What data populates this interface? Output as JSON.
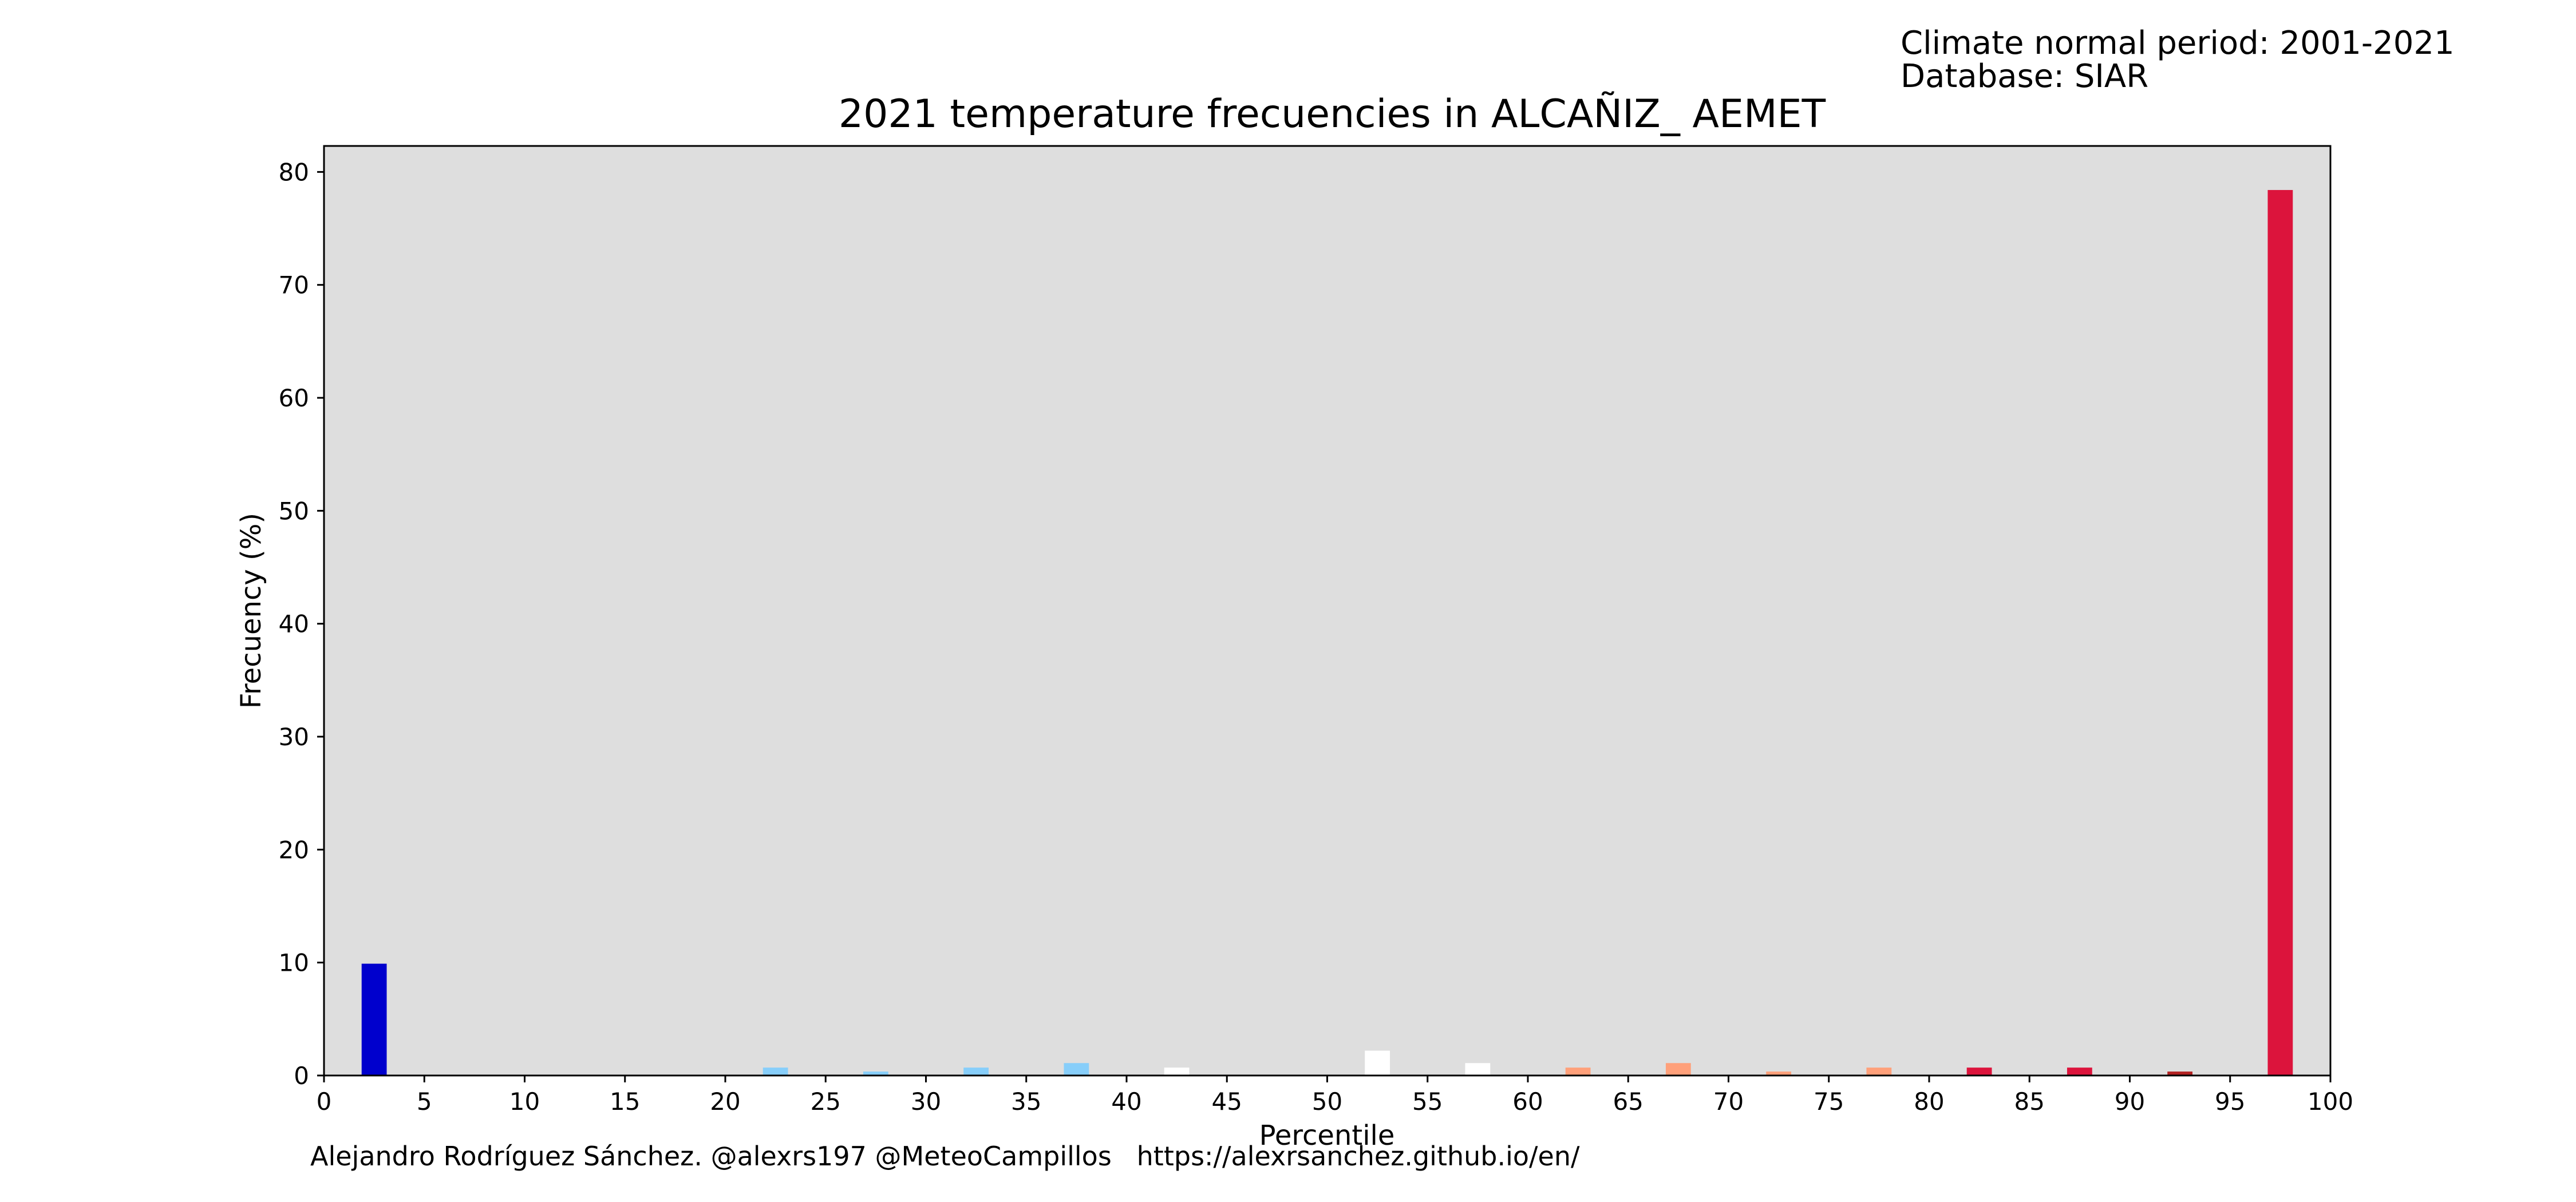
{
  "header_info": {
    "climate_normal": "Climate normal period: 2001-2021",
    "database": "Database: SIAR"
  },
  "footer": {
    "credits": "Alejandro Rodríguez Sánchez. @alexrs197 @MeteoCampillos   https://alexrsanchez.github.io/en/"
  },
  "colors": {
    "plot_background": "#dedede",
    "axes_frame": "#000000"
  },
  "chart_data": {
    "type": "bar",
    "title": "2021 temperature frecuencies in ALCAÑIZ_ AEMET",
    "xlabel": "Percentile",
    "ylabel": "Frecuency (%)",
    "xlim": [
      0,
      100
    ],
    "ylim": [
      0,
      82.3
    ],
    "x_ticks": [
      0,
      5,
      10,
      15,
      20,
      25,
      30,
      35,
      40,
      45,
      50,
      55,
      60,
      65,
      70,
      75,
      80,
      85,
      90,
      95,
      100
    ],
    "y_ticks": [
      0,
      10,
      20,
      30,
      40,
      50,
      60,
      70,
      80
    ],
    "bar_width": 1.25,
    "grid": false,
    "bars": [
      {
        "x": 2.5,
        "value": 9.9,
        "color": "#0000cd"
      },
      {
        "x": 7.5,
        "value": 0.0,
        "color": "#0000cd"
      },
      {
        "x": 12.5,
        "value": 0.0,
        "color": "#0000cd"
      },
      {
        "x": 17.5,
        "value": 0.0,
        "color": "#87cefa"
      },
      {
        "x": 22.5,
        "value": 0.7,
        "color": "#87cefa"
      },
      {
        "x": 27.5,
        "value": 0.35,
        "color": "#87cefa"
      },
      {
        "x": 32.5,
        "value": 0.7,
        "color": "#87cefa"
      },
      {
        "x": 37.5,
        "value": 1.1,
        "color": "#87cefa"
      },
      {
        "x": 42.5,
        "value": 0.7,
        "color": "#ffffff"
      },
      {
        "x": 47.5,
        "value": 0.0,
        "color": "#ffffff"
      },
      {
        "x": 52.5,
        "value": 2.2,
        "color": "#ffffff"
      },
      {
        "x": 57.5,
        "value": 1.1,
        "color": "#ffffff"
      },
      {
        "x": 62.5,
        "value": 0.7,
        "color": "#ffa07a"
      },
      {
        "x": 67.5,
        "value": 1.1,
        "color": "#ffa07a"
      },
      {
        "x": 72.5,
        "value": 0.35,
        "color": "#ffa07a"
      },
      {
        "x": 77.5,
        "value": 0.7,
        "color": "#ffa07a"
      },
      {
        "x": 82.5,
        "value": 0.7,
        "color": "#dc143c"
      },
      {
        "x": 87.5,
        "value": 0.7,
        "color": "#dc143c"
      },
      {
        "x": 92.5,
        "value": 0.35,
        "color": "#b22222"
      },
      {
        "x": 97.5,
        "value": 78.4,
        "color": "#dc143c"
      }
    ]
  }
}
